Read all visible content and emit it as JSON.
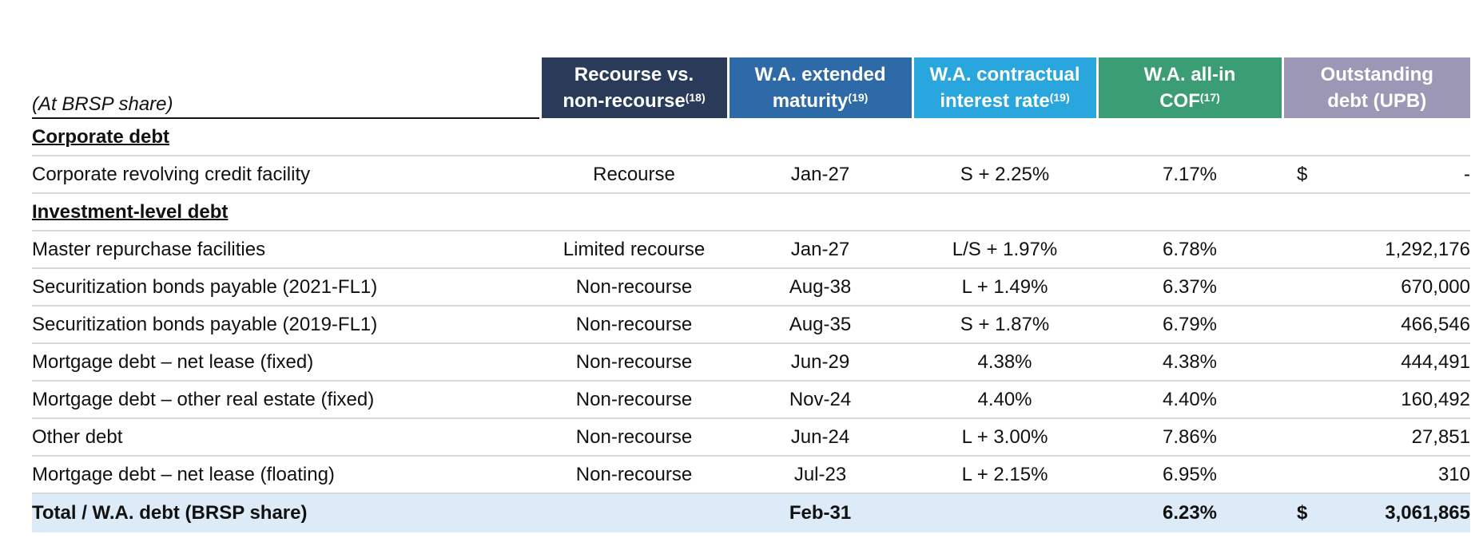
{
  "table": {
    "header": {
      "scope_label": "(At BRSP share)",
      "columns": [
        {
          "line1": "Recourse vs.",
          "line2": "non-recourse",
          "footnote": "(18)",
          "color": "#2a3b5a"
        },
        {
          "line1": "W.A. extended",
          "line2": "maturity",
          "footnote": "(19)",
          "color": "#2e69a8"
        },
        {
          "line1": "W.A. contractual",
          "line2": "interest rate",
          "footnote": "(19)",
          "color": "#2aa6de"
        },
        {
          "line1": "W.A. all-in",
          "line2": "COF",
          "footnote": "(17)",
          "color": "#3a9d74"
        },
        {
          "line1": "Outstanding",
          "line2": "debt (UPB)",
          "footnote": "",
          "color": "#9b97b5"
        }
      ]
    },
    "sections": [
      {
        "title": "Corporate debt",
        "rows": [
          {
            "label": "Corporate revolving credit facility",
            "recourse": "Recourse",
            "maturity": "Jan-27",
            "rate": "S + 2.25%",
            "cof": "7.17%",
            "currency": "$",
            "debt": "-"
          }
        ]
      },
      {
        "title": "Investment-level debt",
        "rows": [
          {
            "label": "Master repurchase facilities",
            "recourse": "Limited recourse",
            "maturity": "Jan-27",
            "rate": "L/S + 1.97%",
            "cof": "6.78%",
            "currency": "",
            "debt": "1,292,176"
          },
          {
            "label": "Securitization bonds payable (2021-FL1)",
            "recourse": "Non-recourse",
            "maturity": "Aug-38",
            "rate": "L + 1.49%",
            "cof": "6.37%",
            "currency": "",
            "debt": "670,000"
          },
          {
            "label": "Securitization bonds payable (2019-FL1)",
            "recourse": "Non-recourse",
            "maturity": "Aug-35",
            "rate": "S + 1.87%",
            "cof": "6.79%",
            "currency": "",
            "debt": "466,546"
          },
          {
            "label": "Mortgage debt – net lease (fixed)",
            "recourse": "Non-recourse",
            "maturity": "Jun-29",
            "rate": "4.38%",
            "cof": "4.38%",
            "currency": "",
            "debt": "444,491"
          },
          {
            "label": "Mortgage debt – other real estate (fixed)",
            "recourse": "Non-recourse",
            "maturity": "Nov-24",
            "rate": "4.40%",
            "cof": "4.40%",
            "currency": "",
            "debt": "160,492"
          },
          {
            "label": "Other debt",
            "recourse": "Non-recourse",
            "maturity": "Jun-24",
            "rate": "L + 3.00%",
            "cof": "7.86%",
            "currency": "",
            "debt": "27,851"
          },
          {
            "label": "Mortgage debt – net lease (floating)",
            "recourse": "Non-recourse",
            "maturity": "Jul-23",
            "rate": "L + 2.15%",
            "cof": "6.95%",
            "currency": "",
            "debt": "310"
          }
        ]
      }
    ],
    "total": {
      "label": "Total / W.A. debt (BRSP share)",
      "recourse": "",
      "maturity": "Feb-31",
      "rate": "",
      "cof": "6.23%",
      "currency": "$",
      "debt": "3,061,865"
    }
  }
}
